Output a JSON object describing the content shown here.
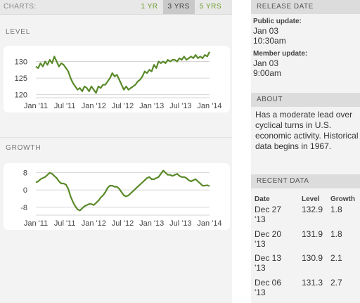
{
  "header": {
    "charts_label": "CHARTS:",
    "ranges": [
      {
        "label": "1 YR",
        "active": false
      },
      {
        "label": "3 YRS",
        "active": true
      },
      {
        "label": "5 YRS",
        "active": false
      }
    ]
  },
  "level_title": "LEVEL",
  "growth_title": "GROWTH",
  "release": {
    "title": "RELEASE DATE",
    "public_label": "Public update:",
    "public_date": "Jan 03",
    "public_time": "10:30am",
    "member_label": "Member update:",
    "member_date": "Jan 03",
    "member_time": "9:00am"
  },
  "about": {
    "title": "ABOUT",
    "text": "Has a moderate lead over cyclical turns in U.S. economic activity. Historical data begins in 1967."
  },
  "recent": {
    "title": "RECENT DATA",
    "headers": [
      "Date",
      "Level",
      "Growth"
    ],
    "rows": [
      {
        "date": "Dec 27 '13",
        "level": "132.9",
        "growth": "1.8"
      },
      {
        "date": "Dec 20 '13",
        "level": "131.9",
        "growth": "1.8"
      },
      {
        "date": "Dec 13 '13",
        "level": "130.9",
        "growth": "2.1"
      },
      {
        "date": "Dec 06 '13",
        "level": "131.3",
        "growth": "2.7"
      }
    ]
  },
  "colors": {
    "line": "#5a8a2a",
    "grid": "#d6d6d6",
    "accent": "#6a9a2a"
  },
  "chart_data": [
    {
      "type": "line",
      "title": "LEVEL",
      "x_tick_labels": [
        "Jan '11",
        "Jul '11",
        "Jan '12",
        "Jul '12",
        "Jan '13",
        "Jul '13",
        "Jan '14"
      ],
      "x_range": [
        2011.0,
        2014.0
      ],
      "y_ticks": [
        120,
        125,
        130
      ],
      "ylim": [
        119.5,
        133.5
      ],
      "grid": true,
      "x": [
        2011.0,
        2011.04,
        2011.08,
        2011.12,
        2011.16,
        2011.2,
        2011.24,
        2011.28,
        2011.32,
        2011.36,
        2011.4,
        2011.44,
        2011.48,
        2011.52,
        2011.56,
        2011.6,
        2011.64,
        2011.68,
        2011.72,
        2011.76,
        2011.8,
        2011.84,
        2011.88,
        2011.92,
        2011.96,
        2012.0,
        2012.04,
        2012.08,
        2012.12,
        2012.16,
        2012.2,
        2012.24,
        2012.28,
        2012.32,
        2012.36,
        2012.4,
        2012.44,
        2012.48,
        2012.52,
        2012.56,
        2012.6,
        2012.64,
        2012.68,
        2012.72,
        2012.76,
        2012.8,
        2012.84,
        2012.88,
        2012.92,
        2012.96,
        2013.0,
        2013.04,
        2013.08,
        2013.12,
        2013.16,
        2013.2,
        2013.24,
        2013.28,
        2013.32,
        2013.36,
        2013.4,
        2013.44,
        2013.48,
        2013.52,
        2013.56,
        2013.6,
        2013.64,
        2013.68,
        2013.72,
        2013.76,
        2013.8,
        2013.84,
        2013.88,
        2013.92,
        2013.96,
        2014.0
      ],
      "y": [
        128.5,
        128.0,
        129.5,
        128.5,
        130.0,
        129.0,
        130.5,
        129.5,
        131.5,
        130.0,
        128.5,
        129.5,
        129.0,
        128.0,
        127.0,
        125.0,
        123.5,
        122.5,
        121.5,
        122.0,
        121.0,
        122.5,
        122.0,
        121.0,
        122.5,
        121.5,
        120.5,
        122.5,
        122.0,
        123.0,
        123.0,
        124.0,
        125.0,
        126.5,
        125.5,
        126.0,
        124.5,
        123.0,
        121.5,
        122.5,
        121.5,
        122.0,
        122.5,
        123.0,
        124.0,
        124.5,
        125.5,
        127.0,
        126.5,
        127.5,
        127.0,
        129.0,
        128.0,
        130.0,
        129.5,
        130.0,
        129.5,
        130.5,
        130.0,
        130.5,
        130.5,
        130.0,
        131.0,
        130.5,
        131.5,
        130.5,
        131.0,
        131.5,
        131.0,
        132.0,
        131.0,
        131.5,
        131.0,
        132.0,
        131.5,
        132.9
      ]
    },
    {
      "type": "line",
      "title": "GROWTH",
      "x_tick_labels": [
        "Jan '11",
        "Jul '11",
        "Jan '12",
        "Jul '12",
        "Jan '13",
        "Jul '13",
        "Jan '14"
      ],
      "x_range": [
        2011.0,
        2014.0
      ],
      "y_ticks": [
        -8,
        0,
        8
      ],
      "ylim": [
        -11,
        10.5
      ],
      "grid": true,
      "x": [
        2011.0,
        2011.04,
        2011.08,
        2011.12,
        2011.16,
        2011.2,
        2011.24,
        2011.28,
        2011.32,
        2011.36,
        2011.4,
        2011.44,
        2011.48,
        2011.52,
        2011.56,
        2011.6,
        2011.64,
        2011.68,
        2011.72,
        2011.76,
        2011.8,
        2011.84,
        2011.88,
        2011.92,
        2011.96,
        2012.0,
        2012.04,
        2012.08,
        2012.12,
        2012.16,
        2012.2,
        2012.24,
        2012.28,
        2012.32,
        2012.36,
        2012.4,
        2012.44,
        2012.48,
        2012.52,
        2012.56,
        2012.6,
        2012.64,
        2012.68,
        2012.72,
        2012.76,
        2012.8,
        2012.84,
        2012.88,
        2012.92,
        2012.96,
        2013.0,
        2013.04,
        2013.08,
        2013.12,
        2013.16,
        2013.2,
        2013.24,
        2013.28,
        2013.32,
        2013.36,
        2013.4,
        2013.44,
        2013.48,
        2013.52,
        2013.56,
        2013.6,
        2013.64,
        2013.68,
        2013.72,
        2013.76,
        2013.8,
        2013.84,
        2013.88,
        2013.92,
        2013.96,
        2014.0
      ],
      "y": [
        3.5,
        4.0,
        5.0,
        5.5,
        6.0,
        7.0,
        8.0,
        7.5,
        6.5,
        5.5,
        4.0,
        3.0,
        3.0,
        2.5,
        0.5,
        -3.0,
        -5.5,
        -7.5,
        -9.0,
        -9.5,
        -8.5,
        -7.5,
        -7.0,
        -6.5,
        -6.5,
        -7.0,
        -6.0,
        -5.0,
        -3.5,
        -2.5,
        -1.0,
        1.0,
        2.0,
        2.0,
        1.5,
        1.5,
        0.5,
        -1.0,
        -2.5,
        -3.0,
        -2.5,
        -1.5,
        -0.5,
        0.5,
        1.5,
        2.5,
        3.5,
        4.5,
        5.5,
        6.0,
        5.0,
        5.0,
        5.5,
        6.0,
        7.5,
        9.0,
        8.0,
        7.0,
        7.0,
        6.5,
        7.0,
        7.5,
        6.5,
        6.0,
        6.0,
        5.5,
        4.5,
        4.0,
        4.5,
        5.0,
        4.0,
        3.0,
        2.0,
        2.0,
        2.2,
        1.8
      ]
    }
  ]
}
